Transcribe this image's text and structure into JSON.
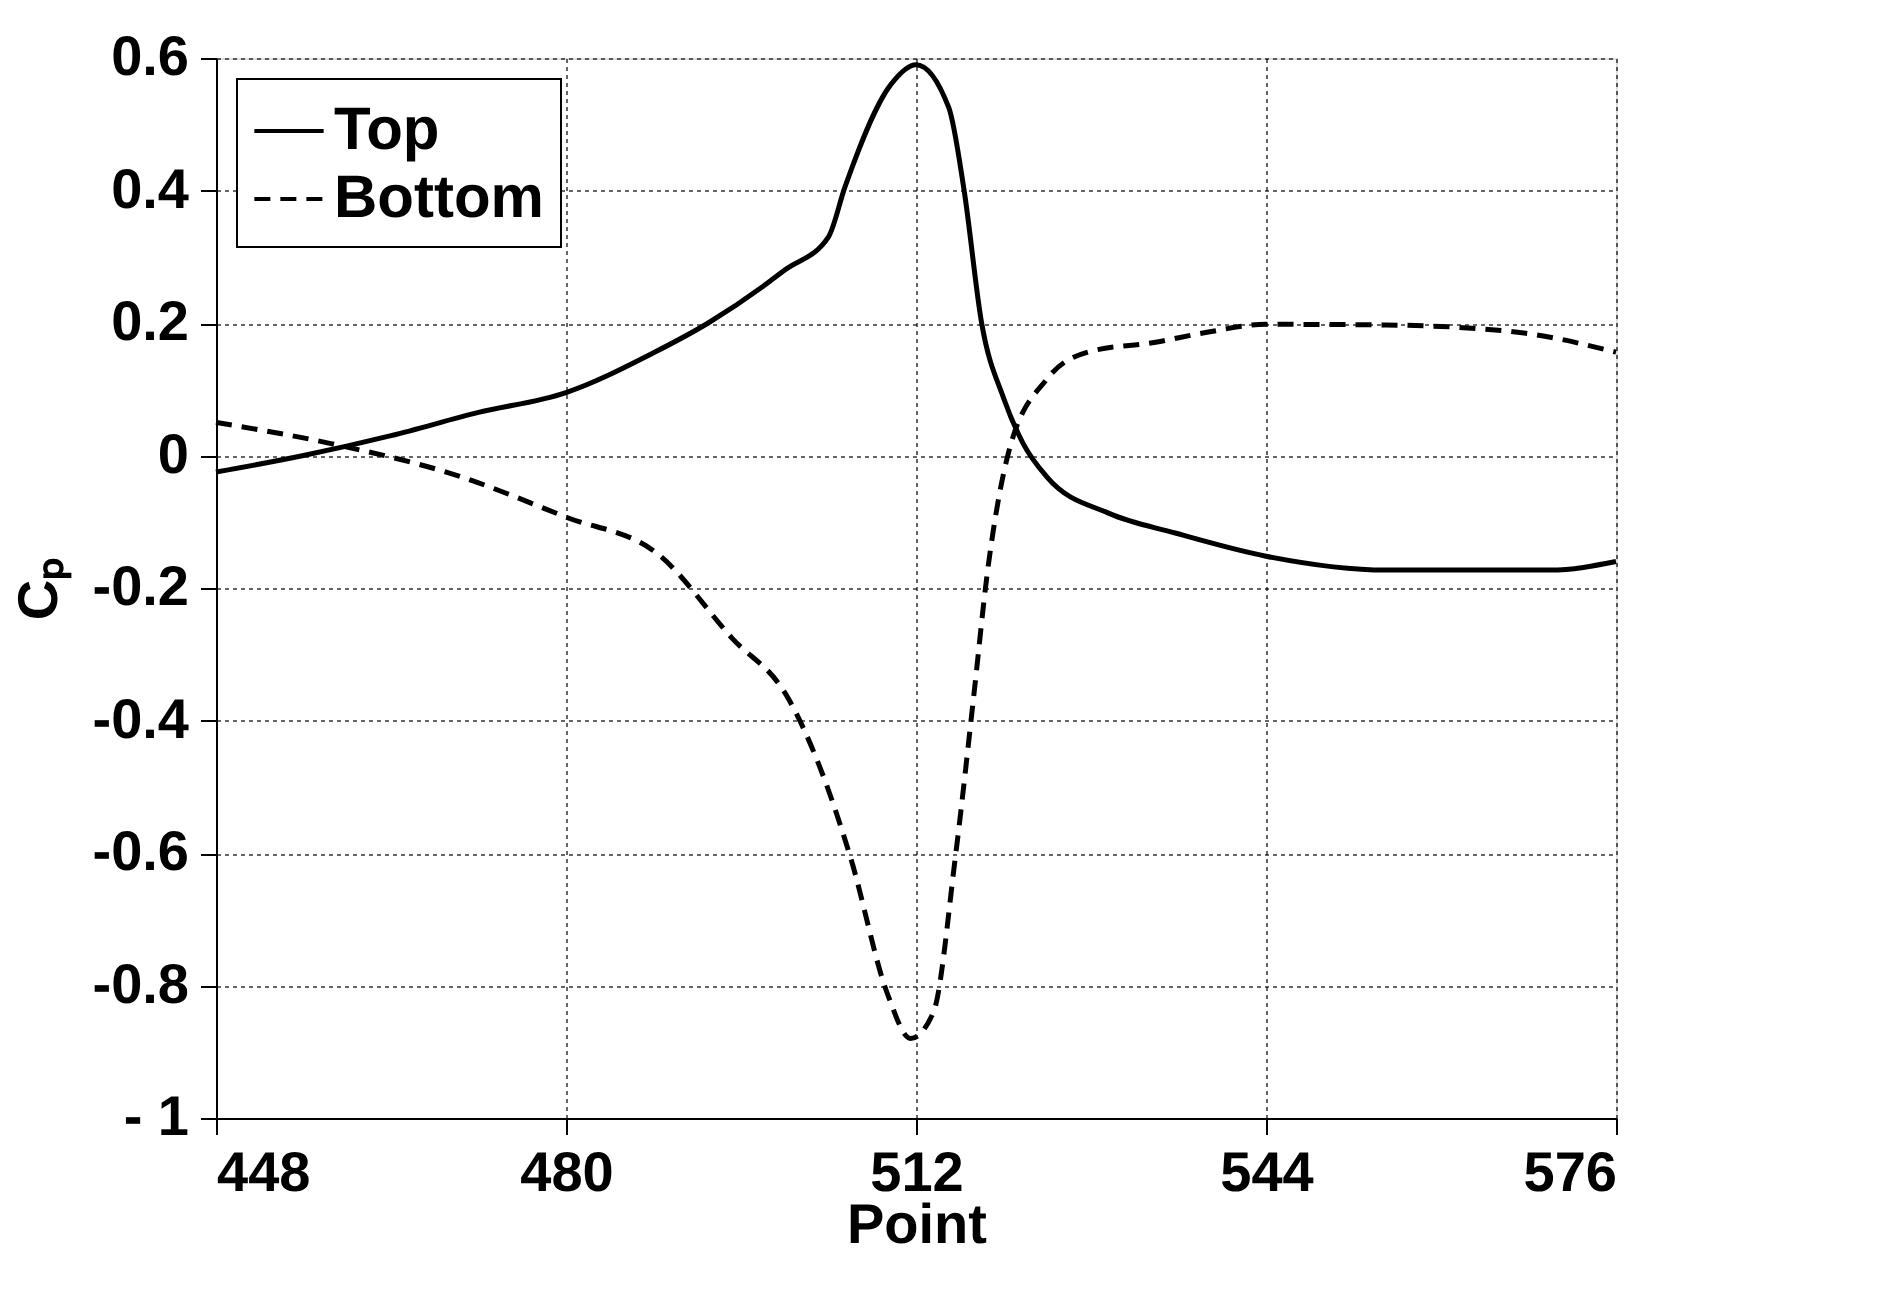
{
  "chart_data": {
    "type": "line",
    "xlabel": "Point",
    "ylabel": "Cₚ",
    "xlim": [
      448,
      576
    ],
    "ylim": [
      -1,
      0.6
    ],
    "xticks": [
      448,
      480,
      512,
      544,
      576
    ],
    "yticks": [
      {
        "value": -1,
        "label": "- 1"
      },
      -0.8,
      -0.6,
      -0.4,
      -0.2,
      0,
      0.2,
      0.4,
      0.6
    ],
    "grid": true,
    "legend": "top left",
    "marker": "none",
    "series": [
      {
        "name": "Top",
        "color": "#000000",
        "line_style": "solid",
        "x": [
          448,
          456,
          464,
          472,
          480,
          488,
          493,
          498,
          500,
          504,
          505.5,
          509.7,
          512,
          515,
          516.4,
          518,
          520,
          521.8,
          524,
          529.6,
          535.7,
          544,
          555,
          570,
          576
        ],
        "values": [
          -0.025,
          0.0,
          0.03,
          0.065,
          0.095,
          0.155,
          0.2,
          0.255,
          0.28,
          0.33,
          0.405,
          0.56,
          0.59,
          0.525,
          0.4,
          0.2,
          0.087,
          0.018,
          -0.033,
          -0.087,
          -0.117,
          -0.152,
          -0.173,
          -0.173,
          -0.16
        ]
      },
      {
        "name": "Bottom",
        "color": "#000000",
        "line_style": "dashed",
        "x": [
          448,
          458.5,
          470,
          480,
          488.5,
          495.2,
          500.3,
          503.2,
          506,
          509.4,
          511.5,
          513.6,
          515.6,
          517.3,
          518.5,
          520.5,
          524,
          527.7,
          533.9,
          538.6,
          544,
          555,
          567,
          576
        ],
        "values": [
          0.05,
          0.018,
          -0.03,
          -0.093,
          -0.15,
          -0.276,
          -0.366,
          -0.47,
          -0.606,
          -0.813,
          -0.88,
          -0.84,
          -0.606,
          -0.36,
          -0.18,
          0.007,
          0.116,
          0.156,
          0.171,
          0.186,
          0.198,
          0.197,
          0.186,
          0.156
        ]
      }
    ]
  }
}
